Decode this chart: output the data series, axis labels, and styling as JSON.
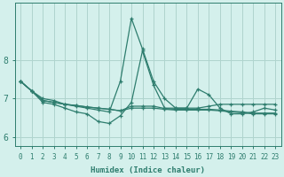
{
  "x": [
    0,
    1,
    2,
    3,
    4,
    5,
    6,
    7,
    8,
    9,
    10,
    11,
    12,
    13,
    14,
    15,
    16,
    17,
    18,
    19,
    20,
    21,
    22,
    23
  ],
  "lines": [
    [
      7.45,
      7.2,
      6.95,
      6.9,
      6.85,
      6.82,
      6.78,
      6.75,
      6.72,
      6.68,
      6.75,
      6.75,
      6.75,
      6.72,
      6.7,
      6.7,
      6.7,
      6.7,
      6.68,
      6.65,
      6.63,
      6.6,
      6.6,
      6.6
    ],
    [
      7.45,
      7.2,
      6.95,
      6.9,
      6.85,
      6.82,
      6.78,
      6.75,
      6.72,
      6.68,
      6.8,
      6.8,
      6.8,
      6.74,
      6.72,
      6.72,
      6.72,
      6.72,
      6.7,
      6.67,
      6.65,
      6.62,
      6.62,
      6.62
    ],
    [
      7.45,
      7.2,
      6.9,
      6.85,
      6.75,
      6.65,
      6.6,
      6.4,
      6.35,
      6.55,
      6.9,
      8.25,
      7.35,
      6.75,
      6.75,
      6.75,
      7.25,
      7.1,
      6.75,
      6.6,
      6.6,
      6.65,
      6.75,
      6.7
    ],
    [
      7.45,
      7.2,
      7.0,
      6.95,
      6.85,
      6.8,
      6.75,
      6.7,
      6.65,
      7.45,
      9.1,
      8.3,
      7.45,
      7.0,
      6.75,
      6.75,
      6.75,
      6.8,
      6.85,
      6.85,
      6.85,
      6.85,
      6.85,
      6.85
    ]
  ],
  "line_color": "#2e7d6e",
  "bg_color": "#d4f0ec",
  "grid_color": "#afd4ce",
  "xlabel": "Humidex (Indice chaleur)",
  "xlim": [
    -0.5,
    23.5
  ],
  "ylim": [
    5.75,
    9.5
  ],
  "yticks": [
    6,
    7,
    8
  ],
  "xticks": [
    0,
    1,
    2,
    3,
    4,
    5,
    6,
    7,
    8,
    9,
    10,
    11,
    12,
    13,
    14,
    15,
    16,
    17,
    18,
    19,
    20,
    21,
    22,
    23
  ],
  "marker": "+",
  "markersize": 3.5,
  "linewidth": 0.9,
  "tick_fontsize": 5.5,
  "ylabel_fontsize": 7,
  "xlabel_fontsize": 6.5
}
